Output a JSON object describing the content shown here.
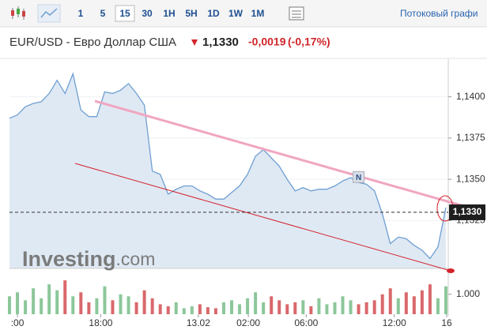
{
  "toolbar": {
    "intervals": [
      "1",
      "5",
      "15",
      "30",
      "1H",
      "5H",
      "1D",
      "1W",
      "1M"
    ],
    "active": 2,
    "stream_label": "Потоковый графи"
  },
  "header": {
    "title": "EUR/USD - Евро Доллар США",
    "price": "1,1330",
    "change": "-0,0019",
    "change_pct": "(-0,17%)"
  },
  "chart_data": {
    "type": "area",
    "color": "#6f9fd2",
    "fill": "#dfe9f4",
    "grid": true,
    "x": [
      0,
      1,
      2,
      3,
      4,
      5,
      6,
      7,
      8,
      9,
      10,
      11,
      12,
      13,
      14,
      15,
      16,
      17,
      18,
      19,
      20,
      21,
      22,
      23,
      24,
      25,
      26,
      27,
      28,
      29,
      30,
      31,
      32,
      33,
      34,
      35,
      36,
      37,
      38,
      39,
      40,
      41,
      42,
      43,
      44,
      45,
      46,
      47,
      48,
      49,
      50,
      51,
      52,
      53,
      54,
      55
    ],
    "values": [
      1.1387,
      1.1389,
      1.1394,
      1.1396,
      1.1397,
      1.1402,
      1.141,
      1.1402,
      1.1414,
      1.1392,
      1.1388,
      1.1388,
      1.1403,
      1.1402,
      1.1404,
      1.1408,
      1.1402,
      1.1395,
      1.1355,
      1.1353,
      1.1341,
      1.1344,
      1.1346,
      1.1346,
      1.1343,
      1.1341,
      1.1338,
      1.1338,
      1.1342,
      1.1346,
      1.1353,
      1.1364,
      1.1368,
      1.1363,
      1.1358,
      1.135,
      1.1343,
      1.1345,
      1.1343,
      1.1344,
      1.1344,
      1.1346,
      1.1349,
      1.1351,
      1.1348,
      1.1347,
      1.1343,
      1.1329,
      1.1311,
      1.1315,
      1.1314,
      1.131,
      1.1307,
      1.1302,
      1.1309,
      1.1333
    ],
    "xlim": [
      0,
      55.3
    ],
    "ylim": [
      1.1296,
      1.1418
    ],
    "xticks": [
      {
        "value": 1,
        "label": ":00"
      },
      {
        "value": 11.5,
        "label": "18:00"
      },
      {
        "value": 23.8,
        "label": "13.02"
      },
      {
        "value": 30.1,
        "label": "02:00"
      },
      {
        "value": 37.4,
        "label": "06:00"
      },
      {
        "value": 48.5,
        "label": "12:00"
      },
      {
        "value": 55.1,
        "label": "16"
      }
    ],
    "yticks": [
      {
        "value": 1.14,
        "label": "1,1400"
      },
      {
        "value": 1.1375,
        "label": "1,1375"
      },
      {
        "value": 1.135,
        "label": "1,1350"
      },
      {
        "value": 1.1325,
        "label": "1,1325"
      }
    ],
    "current": {
      "value": 1.133,
      "label": "1,1330"
    },
    "news_marker": {
      "x": 44,
      "label": "N"
    },
    "watermark": {
      "brand": "Investing",
      "suffix": ".com"
    }
  },
  "volume": {
    "type": "bar",
    "up_color": "#8cc79a",
    "down_color": "#d9686b",
    "ylim": [
      0,
      2100
    ],
    "yticks": [
      {
        "value": 1000,
        "label": "1.000"
      }
    ],
    "values": [
      900,
      1100,
      700,
      1300,
      800,
      1500,
      1200,
      1700,
      900,
      1100,
      600,
      800,
      1400,
      700,
      1000,
      900,
      600,
      1200,
      800,
      500,
      400,
      600,
      300,
      400,
      500,
      350,
      300,
      600,
      700,
      500,
      800,
      1100,
      600,
      900,
      700,
      500,
      600,
      700,
      400,
      800,
      500,
      600,
      900,
      700,
      500,
      600,
      700,
      1000,
      1300,
      800,
      1100,
      900,
      1200,
      1500,
      800,
      1400
    ]
  }
}
